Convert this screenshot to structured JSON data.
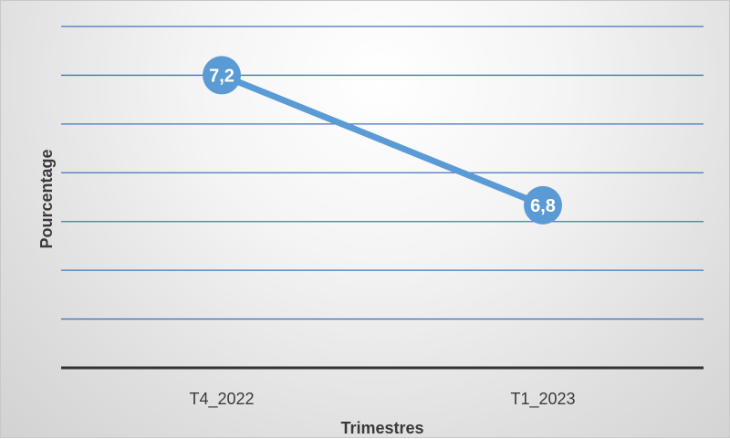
{
  "chart_data": {
    "type": "line",
    "categories": [
      "T4_2022",
      "T1_2023"
    ],
    "series": [
      {
        "values": [
          7.2,
          6.8
        ],
        "labels": [
          "7,2",
          "6,8"
        ]
      }
    ],
    "xlabel": "Trimestres",
    "ylabel": "Pourcentage",
    "ylim": [
      6.3,
      7.35
    ],
    "grid": true,
    "legend": "none",
    "colors": {
      "line": "#5b9bd5",
      "grid": "#4472c4",
      "axis": "#333333"
    }
  }
}
